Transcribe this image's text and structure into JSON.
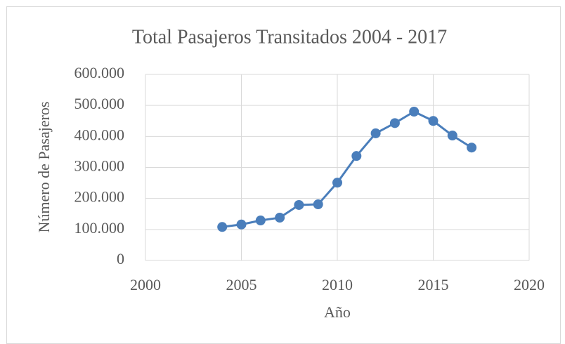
{
  "chart_data": {
    "type": "line",
    "title": "Total Pasajeros Transitados 2004 - 2017",
    "x_label": "Año",
    "y_label": "Número de Pasajeros",
    "x": [
      2004,
      2005,
      2006,
      2007,
      2008,
      2009,
      2010,
      2011,
      2012,
      2013,
      2014,
      2015,
      2016,
      2017
    ],
    "series": [
      {
        "name": "Pasajeros",
        "color": "#4a7ebb",
        "values": [
          108000,
          116000,
          129000,
          138000,
          179000,
          181000,
          251000,
          337000,
          410000,
          443000,
          480000,
          450000,
          403000,
          364000
        ]
      }
    ],
    "xlim": [
      2000,
      2020
    ],
    "xticks": [
      2000,
      2005,
      2010,
      2015,
      2020
    ],
    "ylim": [
      0,
      600000
    ],
    "yticks": [
      0,
      {
        "value": 100000,
        "label": "100.000"
      },
      {
        "value": 200000,
        "label": "200.000"
      },
      {
        "value": 300000,
        "label": "300.000"
      },
      {
        "value": 400000,
        "label": "400.000"
      },
      {
        "value": 500000,
        "label": "500.000"
      },
      {
        "value": 600000,
        "label": "600.000"
      }
    ],
    "grid": true
  }
}
